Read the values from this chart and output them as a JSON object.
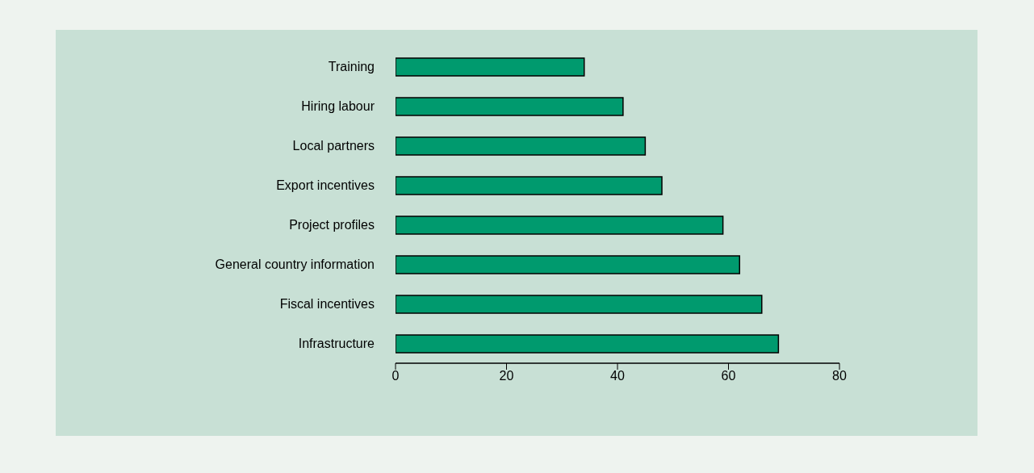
{
  "chart_data": {
    "type": "bar",
    "orientation": "horizontal",
    "categories": [
      "Training",
      "Hiring labour",
      "Local partners",
      "Export incentives",
      "Project profiles",
      "General country information",
      "Fiscal incentives",
      "Infrastructure"
    ],
    "values": [
      34,
      41,
      45,
      48,
      59,
      62,
      66,
      69
    ],
    "color": "#009a6e",
    "xlim": [
      0,
      80
    ],
    "xticks": [
      0,
      20,
      40,
      60,
      80
    ],
    "grid": false
  }
}
